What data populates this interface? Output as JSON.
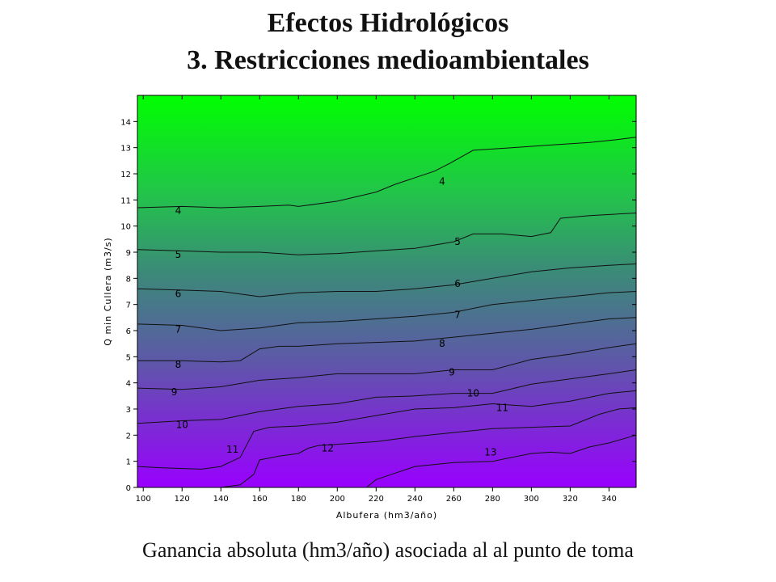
{
  "slide": {
    "title_line1": "Efectos Hidrológicos",
    "title_line2": "3. Restricciones medioambientales",
    "caption": "Ganancia absoluta (hm3/año) asociada al  al punto de toma"
  },
  "chart_data": {
    "type": "heatmap",
    "xlabel": "Albufera (hm3/año)",
    "ylabel": "Q min Cullera (m3/s)",
    "xlim": [
      97,
      354
    ],
    "ylim": [
      0,
      15
    ],
    "x_ticks": [
      100,
      120,
      140,
      160,
      180,
      200,
      220,
      240,
      260,
      280,
      300,
      320,
      340
    ],
    "y_ticks": [
      0,
      1,
      2,
      3,
      4,
      5,
      6,
      7,
      8,
      9,
      10,
      11,
      12,
      13,
      14
    ],
    "x_tick_labels": [
      "100",
      "120",
      "140",
      "160",
      "180",
      "200",
      "220",
      "240",
      "260",
      "280",
      "300",
      "320",
      "340"
    ],
    "y_tick_labels": [
      "0",
      "1",
      "2",
      "3",
      "4",
      "5",
      "6",
      "7",
      "8",
      "9",
      "10",
      "11",
      "12",
      "13",
      "14"
    ],
    "colors": {
      "low": "#00ff00",
      "mid": "#3b8a78",
      "high": "#9900ff"
    },
    "contour_levels": [
      {
        "level": 4,
        "points": [
          [
            97,
            10.7
          ],
          [
            120,
            10.75
          ],
          [
            140,
            10.7
          ],
          [
            160,
            10.75
          ],
          [
            175,
            10.8
          ],
          [
            180,
            10.75
          ],
          [
            200,
            10.95
          ],
          [
            220,
            11.3
          ],
          [
            230,
            11.6
          ],
          [
            250,
            12.1
          ],
          [
            258,
            12.4
          ],
          [
            270,
            12.9
          ],
          [
            290,
            13.0
          ],
          [
            310,
            13.1
          ],
          [
            330,
            13.2
          ],
          [
            343,
            13.3
          ],
          [
            354,
            13.4
          ]
        ]
      },
      {
        "level": 5,
        "points": [
          [
            97,
            9.1
          ],
          [
            120,
            9.05
          ],
          [
            140,
            9.0
          ],
          [
            160,
            9.0
          ],
          [
            180,
            8.9
          ],
          [
            200,
            8.95
          ],
          [
            220,
            9.05
          ],
          [
            240,
            9.15
          ],
          [
            260,
            9.4
          ],
          [
            270,
            9.7
          ],
          [
            285,
            9.7
          ],
          [
            300,
            9.6
          ],
          [
            310,
            9.75
          ],
          [
            315,
            10.3
          ],
          [
            330,
            10.4
          ],
          [
            354,
            10.5
          ]
        ]
      },
      {
        "level": 6,
        "points": [
          [
            97,
            7.6
          ],
          [
            120,
            7.55
          ],
          [
            140,
            7.5
          ],
          [
            160,
            7.3
          ],
          [
            180,
            7.45
          ],
          [
            200,
            7.5
          ],
          [
            220,
            7.5
          ],
          [
            240,
            7.6
          ],
          [
            260,
            7.75
          ],
          [
            280,
            8.0
          ],
          [
            300,
            8.25
          ],
          [
            320,
            8.4
          ],
          [
            340,
            8.5
          ],
          [
            354,
            8.55
          ]
        ]
      },
      {
        "level": 7,
        "points": [
          [
            97,
            6.25
          ],
          [
            120,
            6.2
          ],
          [
            140,
            6.0
          ],
          [
            160,
            6.1
          ],
          [
            180,
            6.3
          ],
          [
            200,
            6.35
          ],
          [
            220,
            6.45
          ],
          [
            240,
            6.55
          ],
          [
            260,
            6.7
          ],
          [
            280,
            7.0
          ],
          [
            300,
            7.15
          ],
          [
            320,
            7.3
          ],
          [
            340,
            7.45
          ],
          [
            354,
            7.5
          ]
        ]
      },
      {
        "level": 8,
        "points": [
          [
            97,
            4.85
          ],
          [
            120,
            4.85
          ],
          [
            140,
            4.8
          ],
          [
            150,
            4.85
          ],
          [
            160,
            5.3
          ],
          [
            170,
            5.4
          ],
          [
            180,
            5.4
          ],
          [
            200,
            5.5
          ],
          [
            220,
            5.55
          ],
          [
            240,
            5.6
          ],
          [
            260,
            5.75
          ],
          [
            280,
            5.9
          ],
          [
            300,
            6.05
          ],
          [
            320,
            6.25
          ],
          [
            340,
            6.45
          ],
          [
            354,
            6.5
          ]
        ]
      },
      {
        "level": 9,
        "points": [
          [
            97,
            3.8
          ],
          [
            120,
            3.75
          ],
          [
            140,
            3.85
          ],
          [
            160,
            4.1
          ],
          [
            180,
            4.2
          ],
          [
            200,
            4.35
          ],
          [
            220,
            4.35
          ],
          [
            240,
            4.35
          ],
          [
            260,
            4.5
          ],
          [
            280,
            4.5
          ],
          [
            300,
            4.9
          ],
          [
            320,
            5.1
          ],
          [
            340,
            5.35
          ],
          [
            354,
            5.5
          ]
        ]
      },
      {
        "level": 10,
        "points": [
          [
            97,
            2.45
          ],
          [
            120,
            2.55
          ],
          [
            140,
            2.6
          ],
          [
            160,
            2.9
          ],
          [
            180,
            3.1
          ],
          [
            200,
            3.2
          ],
          [
            220,
            3.45
          ],
          [
            240,
            3.5
          ],
          [
            260,
            3.6
          ],
          [
            280,
            3.6
          ],
          [
            300,
            3.95
          ],
          [
            320,
            4.15
          ],
          [
            340,
            4.35
          ],
          [
            354,
            4.5
          ]
        ]
      },
      {
        "level": 11,
        "points": [
          [
            97,
            0.8
          ],
          [
            110,
            0.75
          ],
          [
            130,
            0.7
          ],
          [
            140,
            0.8
          ],
          [
            150,
            1.15
          ],
          [
            157,
            2.15
          ],
          [
            165,
            2.3
          ],
          [
            180,
            2.35
          ],
          [
            200,
            2.5
          ],
          [
            220,
            2.75
          ],
          [
            240,
            3.0
          ],
          [
            260,
            3.05
          ],
          [
            280,
            3.2
          ],
          [
            300,
            3.1
          ],
          [
            320,
            3.3
          ],
          [
            340,
            3.6
          ],
          [
            354,
            3.7
          ]
        ]
      },
      {
        "level": 12,
        "points": [
          [
            140,
            0
          ],
          [
            150,
            0.1
          ],
          [
            157,
            0.5
          ],
          [
            160,
            1.05
          ],
          [
            170,
            1.2
          ],
          [
            180,
            1.3
          ],
          [
            185,
            1.5
          ],
          [
            190,
            1.6
          ],
          [
            200,
            1.65
          ],
          [
            220,
            1.75
          ],
          [
            240,
            1.95
          ],
          [
            260,
            2.1
          ],
          [
            280,
            2.25
          ],
          [
            300,
            2.3
          ],
          [
            320,
            2.35
          ],
          [
            335,
            2.8
          ],
          [
            345,
            3.0
          ],
          [
            354,
            3.05
          ]
        ]
      },
      {
        "level": 13,
        "points": [
          [
            215,
            0
          ],
          [
            220,
            0.3
          ],
          [
            230,
            0.55
          ],
          [
            240,
            0.8
          ],
          [
            260,
            0.95
          ],
          [
            280,
            1.0
          ],
          [
            290,
            1.15
          ],
          [
            300,
            1.3
          ],
          [
            310,
            1.35
          ],
          [
            320,
            1.3
          ],
          [
            330,
            1.55
          ],
          [
            340,
            1.7
          ],
          [
            354,
            2.0
          ]
        ]
      }
    ],
    "contour_labels": [
      {
        "level": 4,
        "text": "4",
        "x": 118,
        "y": 10.6
      },
      {
        "level": 4,
        "text": "4",
        "x": 254,
        "y": 11.7
      },
      {
        "level": 5,
        "text": "5",
        "x": 118,
        "y": 8.9
      },
      {
        "level": 5,
        "text": "5",
        "x": 262,
        "y": 9.4
      },
      {
        "level": 6,
        "text": "6",
        "x": 118,
        "y": 7.4
      },
      {
        "level": 6,
        "text": "6",
        "x": 262,
        "y": 7.8
      },
      {
        "level": 7,
        "text": "7",
        "x": 118,
        "y": 6.05
      },
      {
        "level": 7,
        "text": "7",
        "x": 262,
        "y": 6.6
      },
      {
        "level": 8,
        "text": "8",
        "x": 118,
        "y": 4.7
      },
      {
        "level": 8,
        "text": "8",
        "x": 254,
        "y": 5.5
      },
      {
        "level": 9,
        "text": "9",
        "x": 116,
        "y": 3.65
      },
      {
        "level": 9,
        "text": "9",
        "x": 259,
        "y": 4.4
      },
      {
        "level": 10,
        "text": "10",
        "x": 120,
        "y": 2.4
      },
      {
        "level": 10,
        "text": "10",
        "x": 270,
        "y": 3.6
      },
      {
        "level": 11,
        "text": "11",
        "x": 146,
        "y": 1.45
      },
      {
        "level": 11,
        "text": "11",
        "x": 285,
        "y": 3.05
      },
      {
        "level": 12,
        "text": "12",
        "x": 195,
        "y": 1.5
      },
      {
        "level": 13,
        "text": "13",
        "x": 279,
        "y": 1.35
      }
    ]
  }
}
